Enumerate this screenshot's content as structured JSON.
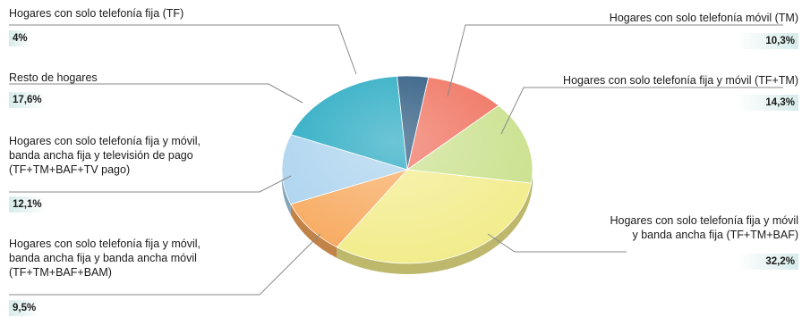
{
  "chart_data": {
    "type": "pie",
    "title": "",
    "slices": [
      {
        "label": "Hogares con solo telefonía móvil (TM)",
        "value_label": "10,3%",
        "value": 10.3,
        "color": "#ef6b57"
      },
      {
        "label": "Hogares con solo telefonía fija y móvil (TF+TM)",
        "value_label": "14,3%",
        "value": 14.3,
        "color": "#c9e08a"
      },
      {
        "label": "Hogares con solo telefonía fija y móvil y banda ancha fija (TF+TM+BAF)",
        "value_label": "32,2%",
        "value": 32.2,
        "color": "#f2ec8a"
      },
      {
        "label": "Hogares con solo telefonía fija y móvil, banda ancha fija y banda ancha móvil (TF+TM+BAF+BAM)",
        "value_label": "9,5%",
        "value": 9.5,
        "color": "#f7a85c"
      },
      {
        "label": "Hogares con solo telefonía fija y móvil, banda ancha fija y televisión de pago (TF+TM+BAF+TV pago)",
        "value_label": "12,1%",
        "value": 12.1,
        "color": "#a9d2ee"
      },
      {
        "label": "Resto de hogares",
        "value_label": "17,6%",
        "value": 17.6,
        "color": "#1da6bf"
      },
      {
        "label": "Hogares con solo telefonía fija (TF)",
        "value_label": "4%",
        "value": 4,
        "color": "#1f4f78"
      }
    ],
    "label_lines": {
      "tm": [
        "Hogares con solo telefonía móvil (TM)"
      ],
      "tftm": [
        "Hogares con solo telefonía fija y móvil (TF+TM)"
      ],
      "baf": [
        "Hogares con solo telefonía fija y móvil",
        "y banda ancha fija (TF+TM+BAF)"
      ],
      "bam": [
        "Hogares con solo telefonía fija y móvil,",
        "banda ancha fija y banda ancha móvil",
        "(TF+TM+BAF+BAM)"
      ],
      "tv": [
        "Hogares con solo telefonía fija y móvil,",
        "banda ancha fija y televisión de pago",
        "(TF+TM+BAF+TV pago)"
      ],
      "resto": [
        "Resto de hogares"
      ],
      "tf": [
        "Hogares con solo telefonía fija (TF)"
      ]
    },
    "legend": "none"
  }
}
